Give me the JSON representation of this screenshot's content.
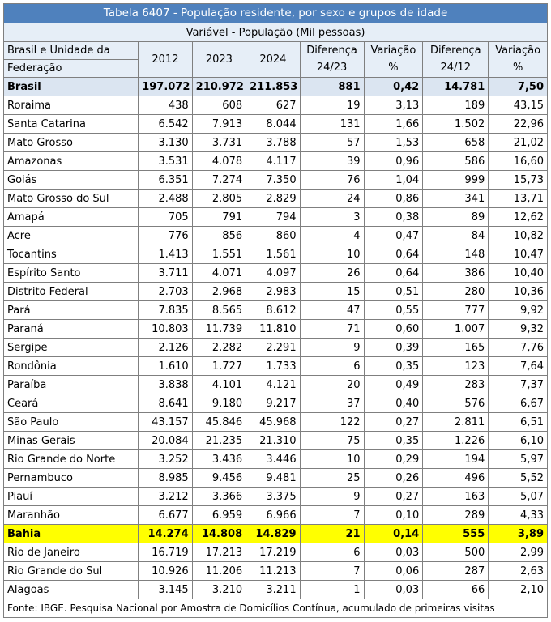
{
  "table": {
    "title": "Tabela 6407 - População residente, por sexo e grupos de idade",
    "subtitle": "Variável - População (Mil pessoas)",
    "headers": {
      "name_line1": "Brasil e Unidade da",
      "name_line2": "Federação",
      "y2012": "2012",
      "y2023": "2023",
      "y2024": "2024",
      "diff2423_line1": "Diferença",
      "diff2423_line2": "24/23",
      "var_line1": "Variação",
      "var_line2": "%",
      "diff2412_line1": "Diferença",
      "diff2412_line2": "24/12",
      "var2_line1": "Variação",
      "var2_line2": "%"
    },
    "rows": [
      {
        "name": "Brasil",
        "y2012": "197.072",
        "y2023": "210.972",
        "y2024": "211.853",
        "d1": "881",
        "v1": "0,42",
        "d2": "14.781",
        "v2": "7,50"
      },
      {
        "name": "Roraima",
        "y2012": "438",
        "y2023": "608",
        "y2024": "627",
        "d1": "19",
        "v1": "3,13",
        "d2": "189",
        "v2": "43,15"
      },
      {
        "name": "Santa Catarina",
        "y2012": "6.542",
        "y2023": "7.913",
        "y2024": "8.044",
        "d1": "131",
        "v1": "1,66",
        "d2": "1.502",
        "v2": "22,96"
      },
      {
        "name": "Mato Grosso",
        "y2012": "3.130",
        "y2023": "3.731",
        "y2024": "3.788",
        "d1": "57",
        "v1": "1,53",
        "d2": "658",
        "v2": "21,02"
      },
      {
        "name": "Amazonas",
        "y2012": "3.531",
        "y2023": "4.078",
        "y2024": "4.117",
        "d1": "39",
        "v1": "0,96",
        "d2": "586",
        "v2": "16,60"
      },
      {
        "name": "Goiás",
        "y2012": "6.351",
        "y2023": "7.274",
        "y2024": "7.350",
        "d1": "76",
        "v1": "1,04",
        "d2": "999",
        "v2": "15,73"
      },
      {
        "name": "Mato Grosso do Sul",
        "y2012": "2.488",
        "y2023": "2.805",
        "y2024": "2.829",
        "d1": "24",
        "v1": "0,86",
        "d2": "341",
        "v2": "13,71"
      },
      {
        "name": "Amapá",
        "y2012": "705",
        "y2023": "791",
        "y2024": "794",
        "d1": "3",
        "v1": "0,38",
        "d2": "89",
        "v2": "12,62"
      },
      {
        "name": "Acre",
        "y2012": "776",
        "y2023": "856",
        "y2024": "860",
        "d1": "4",
        "v1": "0,47",
        "d2": "84",
        "v2": "10,82"
      },
      {
        "name": "Tocantins",
        "y2012": "1.413",
        "y2023": "1.551",
        "y2024": "1.561",
        "d1": "10",
        "v1": "0,64",
        "d2": "148",
        "v2": "10,47"
      },
      {
        "name": "Espírito Santo",
        "y2012": "3.711",
        "y2023": "4.071",
        "y2024": "4.097",
        "d1": "26",
        "v1": "0,64",
        "d2": "386",
        "v2": "10,40"
      },
      {
        "name": "Distrito Federal",
        "y2012": "2.703",
        "y2023": "2.968",
        "y2024": "2.983",
        "d1": "15",
        "v1": "0,51",
        "d2": "280",
        "v2": "10,36"
      },
      {
        "name": "Pará",
        "y2012": "7.835",
        "y2023": "8.565",
        "y2024": "8.612",
        "d1": "47",
        "v1": "0,55",
        "d2": "777",
        "v2": "9,92"
      },
      {
        "name": "Paraná",
        "y2012": "10.803",
        "y2023": "11.739",
        "y2024": "11.810",
        "d1": "71",
        "v1": "0,60",
        "d2": "1.007",
        "v2": "9,32"
      },
      {
        "name": "Sergipe",
        "y2012": "2.126",
        "y2023": "2.282",
        "y2024": "2.291",
        "d1": "9",
        "v1": "0,39",
        "d2": "165",
        "v2": "7,76"
      },
      {
        "name": "Rondônia",
        "y2012": "1.610",
        "y2023": "1.727",
        "y2024": "1.733",
        "d1": "6",
        "v1": "0,35",
        "d2": "123",
        "v2": "7,64"
      },
      {
        "name": "Paraíba",
        "y2012": "3.838",
        "y2023": "4.101",
        "y2024": "4.121",
        "d1": "20",
        "v1": "0,49",
        "d2": "283",
        "v2": "7,37"
      },
      {
        "name": "Ceará",
        "y2012": "8.641",
        "y2023": "9.180",
        "y2024": "9.217",
        "d1": "37",
        "v1": "0,40",
        "d2": "576",
        "v2": "6,67"
      },
      {
        "name": "São Paulo",
        "y2012": "43.157",
        "y2023": "45.846",
        "y2024": "45.968",
        "d1": "122",
        "v1": "0,27",
        "d2": "2.811",
        "v2": "6,51"
      },
      {
        "name": "Minas Gerais",
        "y2012": "20.084",
        "y2023": "21.235",
        "y2024": "21.310",
        "d1": "75",
        "v1": "0,35",
        "d2": "1.226",
        "v2": "6,10"
      },
      {
        "name": "Rio Grande do Norte",
        "y2012": "3.252",
        "y2023": "3.436",
        "y2024": "3.446",
        "d1": "10",
        "v1": "0,29",
        "d2": "194",
        "v2": "5,97"
      },
      {
        "name": "Pernambuco",
        "y2012": "8.985",
        "y2023": "9.456",
        "y2024": "9.481",
        "d1": "25",
        "v1": "0,26",
        "d2": "496",
        "v2": "5,52"
      },
      {
        "name": "Piauí",
        "y2012": "3.212",
        "y2023": "3.366",
        "y2024": "3.375",
        "d1": "9",
        "v1": "0,27",
        "d2": "163",
        "v2": "5,07"
      },
      {
        "name": "Maranhão",
        "y2012": "6.677",
        "y2023": "6.959",
        "y2024": "6.966",
        "d1": "7",
        "v1": "0,10",
        "d2": "289",
        "v2": "4,33"
      },
      {
        "name": "Bahia",
        "y2012": "14.274",
        "y2023": "14.808",
        "y2024": "14.829",
        "d1": "21",
        "v1": "0,14",
        "d2": "555",
        "v2": "3,89"
      },
      {
        "name": "Rio de Janeiro",
        "y2012": "16.719",
        "y2023": "17.213",
        "y2024": "17.219",
        "d1": "6",
        "v1": "0,03",
        "d2": "500",
        "v2": "2,99"
      },
      {
        "name": "Rio Grande do Sul",
        "y2012": "10.926",
        "y2023": "11.206",
        "y2024": "11.213",
        "d1": "7",
        "v1": "0,06",
        "d2": "287",
        "v2": "2,63"
      },
      {
        "name": "Alagoas",
        "y2012": "3.145",
        "y2023": "3.210",
        "y2024": "3.211",
        "d1": "1",
        "v1": "0,03",
        "d2": "66",
        "v2": "2,10"
      }
    ],
    "footer": "Fonte: IBGE. Pesquisa Nacional por Amostra de Domicílios Contínua, acumulado de primeiras visitas"
  },
  "colors": {
    "title_bg": "#4f81bd",
    "header_bg": "#e6eef7",
    "brasil_bg": "#dbe5f1",
    "bahia_bg": "#ffff00"
  }
}
